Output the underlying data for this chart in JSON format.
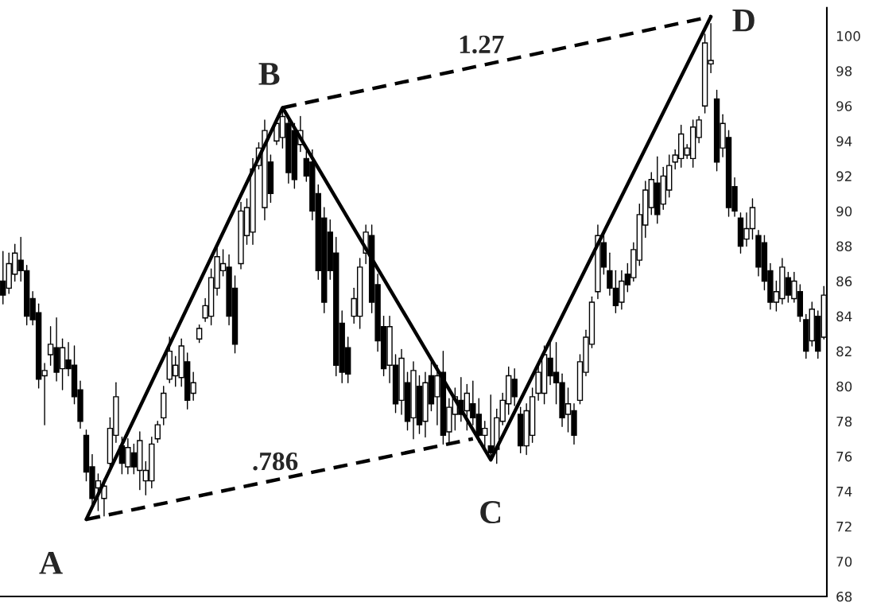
{
  "chart_data": {
    "type": "candlestick",
    "categories": [
      null,
      null,
      null,
      null,
      null,
      null,
      null,
      null,
      null,
      null,
      null,
      null,
      null,
      null,
      null,
      null,
      null,
      null,
      null,
      null,
      null,
      null,
      null,
      null,
      null,
      null,
      null,
      null,
      null,
      null,
      null,
      null,
      null,
      null,
      null,
      null,
      null,
      null,
      null,
      null,
      null,
      null,
      null,
      null,
      null,
      null,
      null,
      null,
      null,
      null,
      null,
      null,
      null,
      null,
      null,
      null,
      null,
      null,
      null,
      null,
      null,
      null,
      null,
      null,
      null,
      null,
      null,
      null,
      null,
      null,
      null,
      null,
      null,
      null,
      null,
      null,
      null,
      null,
      null,
      null,
      null,
      null,
      null,
      null,
      null,
      null,
      null,
      null,
      null,
      null,
      null,
      null,
      null,
      null,
      null,
      null,
      null,
      null,
      null,
      null,
      null,
      null,
      null,
      null,
      null,
      null,
      null,
      null,
      null,
      null,
      null,
      null,
      null,
      null,
      null,
      null,
      null,
      null,
      null,
      null,
      null,
      null,
      null,
      null,
      null,
      null,
      null,
      null,
      null,
      null,
      null,
      null,
      null,
      null,
      null,
      null,
      null,
      null,
      null
    ],
    "color": "#000000",
    "ohlc": [
      [
        86.0,
        87.7,
        84.7,
        85.2
      ],
      [
        85.6,
        87.6,
        85.3,
        87.0
      ],
      [
        86.4,
        88.1,
        86.0,
        87.6
      ],
      [
        87.2,
        88.5,
        86.0,
        86.6
      ],
      [
        86.6,
        86.9,
        83.5,
        84.0
      ],
      [
        85.0,
        85.4,
        83.5,
        83.8
      ],
      [
        84.2,
        84.7,
        79.9,
        80.4
      ],
      [
        80.6,
        81.3,
        77.8,
        80.9
      ],
      [
        81.8,
        83.4,
        81.2,
        82.4
      ],
      [
        82.2,
        83.9,
        80.3,
        80.8
      ],
      [
        81.0,
        82.7,
        79.8,
        82.2
      ],
      [
        81.5,
        82.5,
        80.6,
        81.0
      ],
      [
        81.2,
        82.3,
        79.0,
        79.4
      ],
      [
        79.8,
        80.3,
        77.6,
        78.0
      ],
      [
        77.2,
        77.5,
        74.6,
        75.1
      ],
      [
        75.4,
        76.1,
        73.2,
        73.6
      ],
      [
        74.2,
        75.0,
        72.9,
        74.6
      ],
      [
        73.6,
        74.7,
        72.6,
        74.3
      ],
      [
        75.6,
        78.2,
        75.2,
        77.6
      ],
      [
        77.2,
        80.2,
        76.8,
        79.4
      ],
      [
        76.6,
        77.1,
        75.0,
        75.6
      ],
      [
        75.4,
        77.0,
        75.0,
        76.5
      ],
      [
        76.2,
        76.7,
        75.0,
        75.4
      ],
      [
        75.2,
        77.4,
        74.1,
        76.9
      ],
      [
        74.6,
        75.7,
        73.8,
        75.2
      ],
      [
        74.6,
        77.1,
        74.2,
        76.7
      ],
      [
        77.0,
        78.0,
        76.8,
        77.8
      ],
      [
        78.2,
        80.0,
        77.8,
        79.6
      ],
      [
        80.4,
        82.8,
        80.2,
        82.0
      ],
      [
        80.6,
        81.7,
        80.0,
        81.2
      ],
      [
        80.5,
        82.7,
        80.0,
        82.3
      ],
      [
        81.4,
        81.9,
        78.7,
        79.2
      ],
      [
        79.6,
        80.8,
        79.2,
        80.2
      ],
      [
        82.7,
        83.5,
        82.5,
        83.3
      ],
      [
        83.9,
        85.0,
        83.7,
        84.6
      ],
      [
        84.0,
        86.7,
        83.5,
        86.2
      ],
      [
        85.6,
        87.9,
        85.2,
        87.4
      ],
      [
        86.6,
        87.8,
        86.3,
        87.0
      ],
      [
        86.8,
        87.5,
        83.5,
        84.0
      ],
      [
        85.6,
        86.3,
        81.9,
        82.4
      ],
      [
        87.0,
        90.5,
        86.7,
        90.0
      ],
      [
        88.6,
        90.7,
        88.1,
        90.2
      ],
      [
        88.8,
        93.0,
        88.1,
        92.4
      ],
      [
        92.6,
        93.9,
        92.4,
        93.6
      ],
      [
        90.2,
        95.2,
        89.5,
        94.6
      ],
      [
        92.8,
        93.2,
        90.5,
        91.0
      ],
      [
        94.0,
        95.3,
        93.8,
        95.0
      ],
      [
        94.2,
        95.9,
        93.6,
        95.4
      ],
      [
        95.0,
        95.3,
        91.6,
        92.2
      ],
      [
        94.6,
        95.0,
        91.3,
        91.8
      ],
      [
        93.8,
        95.4,
        93.4,
        94.6
      ],
      [
        93.0,
        93.4,
        91.7,
        92.0
      ],
      [
        92.8,
        93.5,
        89.5,
        90.0
      ],
      [
        91.0,
        91.5,
        86.1,
        86.6
      ],
      [
        89.6,
        90.2,
        84.2,
        84.8
      ],
      [
        88.8,
        89.5,
        86.1,
        86.6
      ],
      [
        87.6,
        88.5,
        80.6,
        81.2
      ],
      [
        83.6,
        84.3,
        80.2,
        80.8
      ],
      [
        82.2,
        82.8,
        80.2,
        80.7
      ],
      [
        84.0,
        85.6,
        83.6,
        85.0
      ],
      [
        84.0,
        87.3,
        83.3,
        86.8
      ],
      [
        87.6,
        89.2,
        87.0,
        88.8
      ],
      [
        88.6,
        89.2,
        84.2,
        84.8
      ],
      [
        85.8,
        86.4,
        82.0,
        82.6
      ],
      [
        83.4,
        84.0,
        80.6,
        81.0
      ],
      [
        81.2,
        84.0,
        80.2,
        83.4
      ],
      [
        81.2,
        81.8,
        78.5,
        79.0
      ],
      [
        79.2,
        82.1,
        78.4,
        81.6
      ],
      [
        80.2,
        80.8,
        77.5,
        78.0
      ],
      [
        78.2,
        81.4,
        77.0,
        80.9
      ],
      [
        80.0,
        80.6,
        77.3,
        77.8
      ],
      [
        78.0,
        80.8,
        77.1,
        80.2
      ],
      [
        80.6,
        81.4,
        78.6,
        79.0
      ],
      [
        79.4,
        81.2,
        77.8,
        80.6
      ],
      [
        80.8,
        82.0,
        76.7,
        77.2
      ],
      [
        77.4,
        79.3,
        76.7,
        78.8
      ],
      [
        78.4,
        79.9,
        77.5,
        79.4
      ],
      [
        79.2,
        80.5,
        78.0,
        78.4
      ],
      [
        78.6,
        80.1,
        77.5,
        79.6
      ],
      [
        79.0,
        80.3,
        77.8,
        78.2
      ],
      [
        78.4,
        79.3,
        76.8,
        77.2
      ],
      [
        77.2,
        78.0,
        76.4,
        77.6
      ],
      [
        76.6,
        79.5,
        75.8,
        76.2
      ],
      [
        76.4,
        78.7,
        75.6,
        78.2
      ],
      [
        78.0,
        79.6,
        77.8,
        79.2
      ],
      [
        79.0,
        81.1,
        78.4,
        80.6
      ],
      [
        80.4,
        81.0,
        78.9,
        79.4
      ],
      [
        78.4,
        78.8,
        76.2,
        76.6
      ],
      [
        76.6,
        79.0,
        76.1,
        78.6
      ],
      [
        77.2,
        79.9,
        76.8,
        79.4
      ],
      [
        79.6,
        81.2,
        79.2,
        80.8
      ],
      [
        79.6,
        82.3,
        79.0,
        81.8
      ],
      [
        81.6,
        82.5,
        80.1,
        80.6
      ],
      [
        80.8,
        82.5,
        79.0,
        80.2
      ],
      [
        80.2,
        80.7,
        77.7,
        78.2
      ],
      [
        78.4,
        79.9,
        77.4,
        79.0
      ],
      [
        78.6,
        79.0,
        76.7,
        77.2
      ],
      [
        79.2,
        81.8,
        79.0,
        81.4
      ],
      [
        80.8,
        83.2,
        80.6,
        82.8
      ],
      [
        82.4,
        85.1,
        82.2,
        84.8
      ],
      [
        85.4,
        89.2,
        85.0,
        88.6
      ],
      [
        88.2,
        88.7,
        86.4,
        86.8
      ],
      [
        86.6,
        87.6,
        85.2,
        85.6
      ],
      [
        85.6,
        86.6,
        84.2,
        84.6
      ],
      [
        84.8,
        86.6,
        84.4,
        86.0
      ],
      [
        86.4,
        87.0,
        85.4,
        85.8
      ],
      [
        86.2,
        88.2,
        86.0,
        87.8
      ],
      [
        87.2,
        90.4,
        86.9,
        89.8
      ],
      [
        89.2,
        91.7,
        88.5,
        91.2
      ],
      [
        90.2,
        92.2,
        89.8,
        91.8
      ],
      [
        91.6,
        93.1,
        89.3,
        89.8
      ],
      [
        90.4,
        92.5,
        90.1,
        92.0
      ],
      [
        91.2,
        93.2,
        90.8,
        92.6
      ],
      [
        92.8,
        93.5,
        92.4,
        93.2
      ],
      [
        93.0,
        94.9,
        92.5,
        94.4
      ],
      [
        93.2,
        93.8,
        93.0,
        93.6
      ],
      [
        93.0,
        95.2,
        92.5,
        94.8
      ],
      [
        94.2,
        95.4,
        93.9,
        95.2
      ],
      [
        96.0,
        100.1,
        95.6,
        99.6
      ],
      [
        98.4,
        100.7,
        97.9,
        98.6
      ],
      [
        96.4,
        96.9,
        92.3,
        92.8
      ],
      [
        93.6,
        95.5,
        93.1,
        95.0
      ],
      [
        94.2,
        94.6,
        89.7,
        90.2
      ],
      [
        91.4,
        91.9,
        89.7,
        90.0
      ],
      [
        89.6,
        89.9,
        87.6,
        88.0
      ],
      [
        88.4,
        89.9,
        88.0,
        89.0
      ],
      [
        89.0,
        90.7,
        88.4,
        90.2
      ],
      [
        88.6,
        88.9,
        86.3,
        86.8
      ],
      [
        88.2,
        88.6,
        85.5,
        86.0
      ],
      [
        86.6,
        87.0,
        84.4,
        84.8
      ],
      [
        84.8,
        86.0,
        84.3,
        85.4
      ],
      [
        85.0,
        87.3,
        84.7,
        86.8
      ],
      [
        86.2,
        86.5,
        84.8,
        85.2
      ],
      [
        85.0,
        86.5,
        84.8,
        86.0
      ],
      [
        85.4,
        85.8,
        83.7,
        84.0
      ],
      [
        83.8,
        84.1,
        81.6,
        82.0
      ],
      [
        82.6,
        84.8,
        82.3,
        84.4
      ],
      [
        84.0,
        84.3,
        81.6,
        82.0
      ],
      [
        82.8,
        85.7,
        82.7,
        85.2
      ]
    ],
    "series": [
      {
        "type": "line",
        "values": [
          null,
          null,
          null,
          null,
          null,
          null,
          null,
          null,
          null,
          null,
          null,
          null,
          null,
          null,
          72.4,
          null,
          null,
          null,
          null,
          null,
          null,
          null,
          null,
          null,
          null,
          null,
          null,
          null,
          null,
          null,
          null,
          null,
          null,
          null,
          null,
          null,
          null,
          null,
          null,
          null,
          null,
          null,
          null,
          null,
          null,
          null,
          null,
          95.9,
          null,
          null,
          null,
          null,
          null,
          null,
          null,
          null,
          null,
          null,
          null,
          null,
          null,
          null,
          null,
          null,
          null,
          null,
          null,
          null,
          null,
          null,
          null,
          null,
          null,
          null,
          null,
          null,
          null,
          null,
          null,
          null,
          null,
          null,
          75.8,
          null,
          null,
          null,
          null,
          null,
          null,
          null,
          null,
          null,
          null,
          null,
          null,
          null,
          null,
          null,
          null,
          null,
          null,
          null,
          null,
          null,
          null,
          null,
          null,
          null,
          null,
          null,
          null,
          null,
          null,
          null,
          null,
          null,
          null,
          null,
          null,
          101.1,
          null,
          null,
          null,
          null,
          null,
          null,
          null,
          null,
          null,
          null,
          null,
          null,
          null,
          null,
          null,
          null,
          null,
          null,
          null
        ],
        "color": "#000000",
        "value_labels": [
          null,
          null,
          null,
          null,
          null,
          null,
          null,
          null,
          null,
          null,
          null,
          null,
          null,
          null,
          "A",
          null,
          null,
          null,
          null,
          null,
          null,
          null,
          null,
          null,
          null,
          null,
          null,
          null,
          null,
          null,
          null,
          null,
          null,
          null,
          null,
          null,
          null,
          null,
          null,
          null,
          null,
          null,
          null,
          null,
          null,
          null,
          null,
          "B",
          null,
          null,
          null,
          null,
          null,
          null,
          null,
          null,
          null,
          null,
          null,
          null,
          null,
          null,
          null,
          null,
          null,
          null,
          null,
          null,
          null,
          null,
          null,
          null,
          null,
          null,
          null,
          null,
          null,
          null,
          null,
          null,
          null,
          null,
          "C",
          null,
          null,
          null,
          null,
          null,
          null,
          null,
          null,
          null,
          null,
          null,
          null,
          null,
          null,
          null,
          null,
          null,
          null,
          null,
          null,
          null,
          null,
          null,
          null,
          null,
          null,
          null,
          null,
          null,
          null,
          null,
          null,
          null,
          null,
          null,
          null,
          "D",
          null,
          null,
          null,
          null,
          null,
          null,
          null,
          null,
          null,
          null,
          null,
          null,
          null,
          null,
          null,
          null,
          null,
          null,
          null
        ]
      },
      {
        "type": "line",
        "values": [
          null,
          null,
          null,
          null,
          null,
          null,
          null,
          null,
          null,
          null,
          null,
          null,
          null,
          null,
          72.4,
          null,
          null,
          null,
          null,
          null,
          null,
          null,
          null,
          null,
          null,
          null,
          null,
          null,
          null,
          null,
          null,
          null,
          null,
          null,
          null,
          null,
          null,
          null,
          null,
          null,
          null,
          null,
          null,
          null,
          null,
          null,
          null,
          null,
          null,
          null,
          null,
          null,
          null,
          null,
          null,
          null,
          null,
          null,
          null,
          null,
          null,
          null,
          null,
          null,
          null,
          null,
          null,
          null,
          null,
          null,
          null,
          null,
          null,
          null,
          null,
          null,
          null,
          null,
          null,
          77.0,
          null,
          null,
          null,
          null,
          null,
          null,
          null,
          null,
          null,
          null,
          null,
          null,
          null,
          null,
          null,
          null,
          null,
          null,
          null,
          null,
          null,
          null,
          null,
          null,
          null,
          null,
          null,
          null,
          null,
          null,
          null,
          null,
          null,
          null,
          null,
          null,
          null,
          null,
          null,
          null,
          null,
          null,
          null,
          null,
          null,
          null,
          null,
          null,
          null,
          null,
          null,
          null,
          null,
          null,
          null,
          null,
          null,
          null,
          null
        ],
        "color": "#000000",
        "line_style": "dashed"
      },
      {
        "type": "line",
        "values": [
          null,
          null,
          null,
          null,
          null,
          null,
          null,
          null,
          null,
          null,
          null,
          null,
          null,
          null,
          null,
          null,
          null,
          null,
          null,
          null,
          null,
          null,
          null,
          null,
          null,
          null,
          null,
          null,
          null,
          null,
          null,
          null,
          null,
          null,
          null,
          null,
          null,
          null,
          null,
          null,
          null,
          null,
          null,
          null,
          null,
          null,
          null,
          95.9,
          null,
          null,
          null,
          null,
          null,
          null,
          null,
          null,
          null,
          null,
          null,
          null,
          null,
          null,
          null,
          null,
          null,
          null,
          null,
          null,
          null,
          null,
          null,
          null,
          null,
          null,
          null,
          null,
          null,
          null,
          null,
          null,
          null,
          null,
          null,
          null,
          null,
          null,
          null,
          null,
          null,
          null,
          null,
          null,
          null,
          null,
          null,
          null,
          null,
          null,
          null,
          null,
          null,
          null,
          null,
          null,
          null,
          null,
          null,
          null,
          null,
          null,
          null,
          null,
          null,
          null,
          null,
          null,
          null,
          null,
          null,
          101.1,
          null,
          null,
          null,
          null,
          null,
          null,
          null,
          null,
          null,
          null,
          null,
          null,
          null,
          null,
          null,
          null,
          null,
          null,
          null
        ],
        "color": "#000000",
        "line_style": "dashed"
      }
    ],
    "annotations": [
      ".786",
      "1.27"
    ],
    "ylim": [
      68,
      101.6
    ],
    "yticks": [
      68,
      70,
      72,
      74,
      76,
      78,
      80,
      82,
      84,
      86,
      88,
      90,
      92,
      94,
      96,
      98,
      100
    ],
    "tick_labels": "y"
  }
}
